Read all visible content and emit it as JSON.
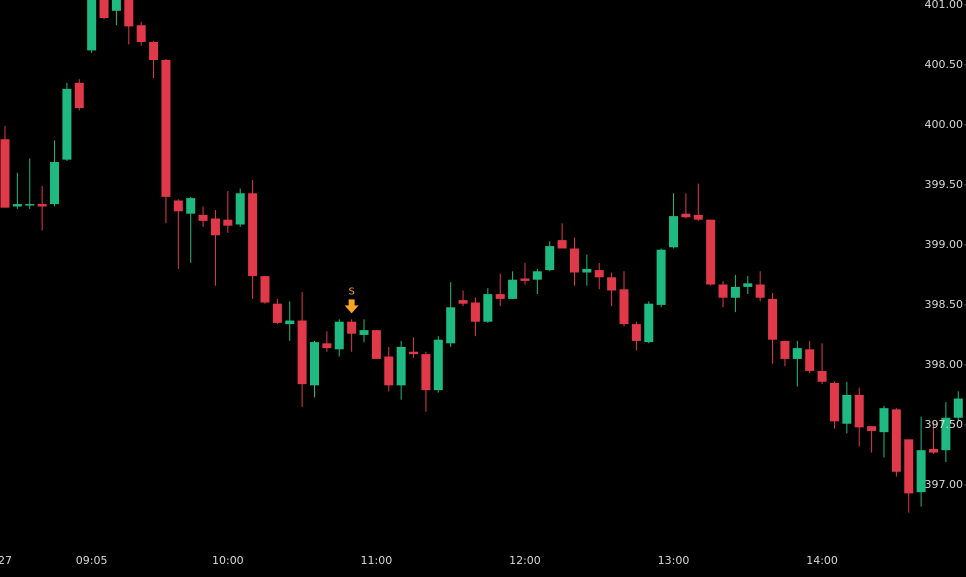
{
  "chart_data": {
    "type": "candlestick",
    "categories": [
      "27",
      null,
      null,
      null,
      null,
      null,
      null,
      "09:05",
      null,
      null,
      null,
      null,
      null,
      null,
      null,
      null,
      null,
      null,
      "10:00",
      null,
      null,
      null,
      null,
      null,
      null,
      null,
      null,
      null,
      null,
      null,
      "11:00",
      null,
      null,
      null,
      null,
      null,
      null,
      null,
      null,
      null,
      null,
      null,
      "12:00",
      null,
      null,
      null,
      null,
      null,
      null,
      null,
      null,
      null,
      null,
      null,
      "13:00",
      null,
      null,
      null,
      null,
      null,
      null,
      null,
      null,
      null,
      null,
      null,
      "14:00",
      null,
      null,
      null,
      null,
      null,
      null,
      null,
      null,
      null,
      null,
      null
    ],
    "open": [
      399.88,
      399.32,
      399.33,
      399.34,
      399.34,
      399.71,
      400.35,
      400.62,
      401.1,
      400.95,
      401.1,
      400.83,
      400.69,
      400.54,
      399.37,
      399.26,
      399.25,
      399.22,
      399.21,
      399.17,
      399.43,
      398.74,
      398.51,
      398.34,
      398.37,
      397.83,
      398.18,
      398.13,
      398.36,
      398.25,
      398.29,
      398.07,
      397.83,
      398.11,
      398.09,
      397.79,
      398.18,
      398.54,
      398.52,
      398.36,
      398.59,
      398.55,
      398.72,
      398.71,
      398.79,
      399.04,
      398.97,
      398.77,
      398.79,
      398.73,
      398.63,
      398.34,
      398.19,
      398.5,
      398.98,
      399.26,
      399.25,
      399.21,
      398.67,
      398.56,
      398.65,
      398.67,
      398.55,
      398.2,
      398.05,
      398.13,
      397.95,
      397.85,
      397.51,
      397.75,
      397.49,
      397.44,
      397.63,
      397.38,
      396.94,
      397.3,
      397.29,
      397.56
    ],
    "high": [
      399.99,
      399.6,
      399.72,
      399.49,
      399.87,
      400.35,
      400.38,
      401.1,
      401.2,
      401.1,
      401.12,
      400.86,
      400.7,
      400.55,
      399.38,
      399.4,
      399.32,
      399.29,
      399.45,
      399.47,
      399.54,
      398.74,
      398.55,
      398.53,
      398.61,
      398.2,
      398.28,
      398.38,
      398.38,
      398.38,
      398.29,
      398.15,
      398.2,
      398.23,
      398.11,
      398.24,
      398.69,
      398.62,
      398.56,
      398.64,
      398.76,
      398.78,
      398.85,
      398.8,
      399.03,
      399.18,
      399.06,
      398.92,
      398.85,
      398.77,
      398.78,
      398.36,
      398.53,
      398.97,
      399.43,
      399.43,
      399.51,
      399.21,
      398.7,
      398.75,
      398.74,
      398.78,
      398.6,
      398.2,
      398.2,
      398.2,
      398.18,
      397.86,
      397.86,
      397.81,
      397.49,
      397.66,
      397.64,
      397.38,
      397.57,
      397.52,
      397.69,
      397.78
    ],
    "low": [
      399.31,
      399.3,
      399.3,
      399.12,
      399.32,
      399.7,
      400.12,
      400.6,
      400.88,
      400.83,
      400.67,
      400.66,
      400.39,
      399.18,
      398.8,
      398.85,
      399.15,
      398.66,
      399.1,
      399.15,
      398.55,
      398.51,
      398.34,
      398.2,
      397.65,
      397.73,
      398.11,
      398.07,
      398.11,
      398.19,
      398.05,
      397.78,
      397.71,
      398.06,
      397.61,
      397.77,
      398.15,
      398.49,
      398.24,
      398.35,
      398.49,
      398.55,
      398.67,
      398.59,
      398.78,
      398.97,
      398.66,
      398.66,
      398.63,
      398.49,
      398.32,
      398.12,
      398.18,
      398.48,
      398.97,
      399.22,
      399.2,
      398.66,
      398.48,
      398.44,
      398.59,
      398.53,
      398.01,
      397.99,
      397.82,
      397.93,
      397.84,
      397.47,
      397.43,
      397.32,
      397.27,
      397.23,
      397.07,
      396.77,
      396.82,
      397.26,
      397.19,
      397.53
    ],
    "close": [
      399.31,
      399.34,
      399.34,
      399.32,
      399.69,
      400.3,
      400.14,
      401.05,
      400.89,
      401.1,
      400.82,
      400.69,
      400.54,
      399.4,
      399.28,
      399.39,
      399.2,
      399.08,
      399.16,
      399.43,
      398.74,
      398.52,
      398.35,
      398.37,
      397.84,
      398.19,
      398.14,
      398.36,
      398.26,
      398.29,
      398.05,
      397.83,
      398.15,
      398.09,
      397.79,
      398.21,
      398.48,
      398.51,
      398.36,
      398.59,
      398.55,
      398.71,
      398.7,
      398.78,
      398.99,
      398.97,
      398.77,
      398.8,
      398.73,
      398.62,
      398.34,
      398.2,
      398.51,
      398.96,
      399.24,
      399.23,
      399.21,
      398.67,
      398.56,
      398.65,
      398.68,
      398.56,
      398.21,
      398.05,
      398.14,
      397.95,
      397.86,
      397.53,
      397.75,
      397.48,
      397.45,
      397.64,
      397.11,
      396.93,
      397.29,
      397.27,
      397.56,
      397.72
    ],
    "up_color": "#1fb982",
    "down_color": "#e0394a",
    "annotations": [
      {
        "text": "S",
        "at": 28,
        "color": "#f5a623"
      }
    ],
    "ylim": [
      396.5,
      401.04
    ],
    "yticks": [
      {
        "value": 397,
        "label": "397.00"
      },
      {
        "value": 397.5,
        "label": "397.50"
      },
      {
        "value": 398,
        "label": "398.00"
      },
      {
        "value": 398.5,
        "label": "398.50"
      },
      {
        "value": 399,
        "label": "399.00"
      },
      {
        "value": 399.5,
        "label": "399.50"
      },
      {
        "value": 400,
        "label": "400.00"
      },
      {
        "value": 400.5,
        "label": "400.50"
      },
      {
        "value": 401,
        "label": "401.00"
      }
    ],
    "grid": false
  }
}
